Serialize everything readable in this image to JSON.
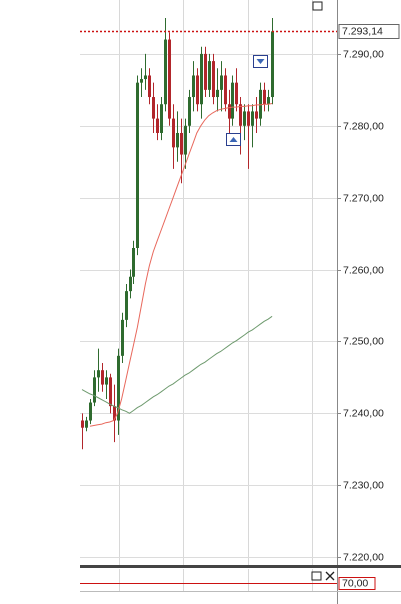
{
  "chart_data": {
    "type": "candlestick",
    "ylim": [
      7218.9,
      7297.5
    ],
    "yticks": [
      {
        "value": 7220,
        "label": "7.220,00"
      },
      {
        "value": 7230,
        "label": "7.230,00"
      },
      {
        "value": 7240,
        "label": "7.240,00"
      },
      {
        "value": 7250,
        "label": "7.250,00"
      },
      {
        "value": 7260,
        "label": "7.260,00"
      },
      {
        "value": 7270,
        "label": "7.270,00"
      },
      {
        "value": 7280,
        "label": "7.280,00"
      },
      {
        "value": 7290,
        "label": "7.290,00"
      }
    ],
    "grid": true,
    "up_color": "#2f6b2f",
    "down_color": "#b2262b",
    "open": [
      7239,
      7238,
      7239,
      7241.5,
      7245,
      7246,
      7244,
      7245,
      7241,
      7239,
      7248,
      7253,
      7257,
      7259,
      7263,
      7286,
      7286.5,
      7287,
      7284,
      7281,
      7279,
      7283,
      7292,
      7281,
      7277,
      7279,
      7276,
      7280,
      7284,
      7287,
      7283,
      7290,
      7285,
      7289,
      7284,
      7285,
      7287,
      7283,
      7281,
      7286,
      7283,
      7280,
      7282,
      7280,
      7282,
      7281,
      7285,
      7283,
      7284
    ],
    "high": [
      7240,
      7239.5,
      7242,
      7246,
      7249,
      7247,
      7246,
      7245.5,
      7244,
      7249,
      7254,
      7258,
      7260,
      7264,
      7287,
      7288,
      7290,
      7288,
      7286,
      7283,
      7284,
      7295,
      7293,
      7283,
      7282,
      7281,
      7281,
      7285,
      7289,
      7288,
      7291,
      7291,
      7290,
      7290,
      7288,
      7289,
      7288,
      7285,
      7287,
      7288,
      7284,
      7283,
      7283,
      7283,
      7284,
      7286,
      7286,
      7285,
      7295
    ],
    "low": [
      7235,
      7237.5,
      7238.5,
      7241,
      7243,
      7243,
      7242,
      7240,
      7236,
      7237,
      7247,
      7252,
      7256,
      7258,
      7262,
      7284,
      7285,
      7283,
      7279,
      7278,
      7278,
      7282,
      7280,
      7274,
      7275,
      7272,
      7274,
      7279,
      7282,
      7282,
      7281,
      7284,
      7284,
      7283,
      7282,
      7282,
      7282,
      7279,
      7280,
      7282,
      7276,
      7278,
      7274,
      7277,
      7279,
      7280,
      7282,
      7282,
      7283
    ],
    "close": [
      7238,
      7239,
      7241.5,
      7245,
      7246,
      7244,
      7245,
      7241,
      7239,
      7248,
      7253,
      7257,
      7259,
      7263,
      7286,
      7286.5,
      7287,
      7284,
      7281,
      7279,
      7283,
      7292,
      7281,
      7277,
      7279,
      7276,
      7280,
      7284,
      7287,
      7283,
      7290,
      7285,
      7289,
      7284,
      7285,
      7287,
      7283,
      7281,
      7286,
      7283,
      7280,
      7282,
      7280,
      7282,
      7281,
      7285,
      7283,
      7284,
      7293.14
    ],
    "series": [
      {
        "color": "#e8685c",
        "values": [
          null,
          null,
          7238.2,
          7238.3,
          7238.4,
          7238.5,
          7238.7,
          7238.8,
          7239.0,
          7240,
          7242,
          7244.5,
          7247,
          7249.5,
          7252,
          7255,
          7258,
          7260.5,
          7262.5,
          7264,
          7265.5,
          7267,
          7268.5,
          7270,
          7271.5,
          7273,
          7274.5,
          7276,
          7277.5,
          7279,
          7280,
          7280.8,
          7281.4,
          7281.8,
          7282.1,
          7282.3,
          7282.4,
          7282.5,
          7282.6,
          7282.6,
          7282.7,
          7282.7,
          7282.8,
          7282.8,
          7282.9,
          7282.9,
          7283.0,
          7283.0,
          7283.1
        ]
      },
      {
        "color": "#6e9a6e",
        "values": [
          7243.3,
          7243.0,
          7242.7,
          7242.5,
          7242.2,
          7241.9,
          7241.6,
          7241.3,
          7241.0,
          7240.8,
          7240.5,
          7240.3,
          7240.0,
          7240.4,
          7240.8,
          7241.1,
          7241.5,
          7241.9,
          7242.3,
          7242.6,
          7243.0,
          7243.4,
          7243.8,
          7244.1,
          7244.5,
          7244.9,
          7245.3,
          7245.6,
          7246.0,
          7246.4,
          7246.8,
          7247.1,
          7247.5,
          7247.9,
          7248.3,
          7248.6,
          7249.0,
          7249.4,
          7249.8,
          7250.1,
          7250.5,
          7250.9,
          7251.3,
          7251.6,
          7252.0,
          7252.4,
          7252.8,
          7253.1,
          7253.5
        ]
      }
    ],
    "last_price": {
      "value": 7293.14,
      "label": "7.293,14",
      "color": "#cc1111"
    },
    "indicator_level": {
      "value": 70,
      "label": "70,00",
      "color": "#cc1111"
    }
  }
}
